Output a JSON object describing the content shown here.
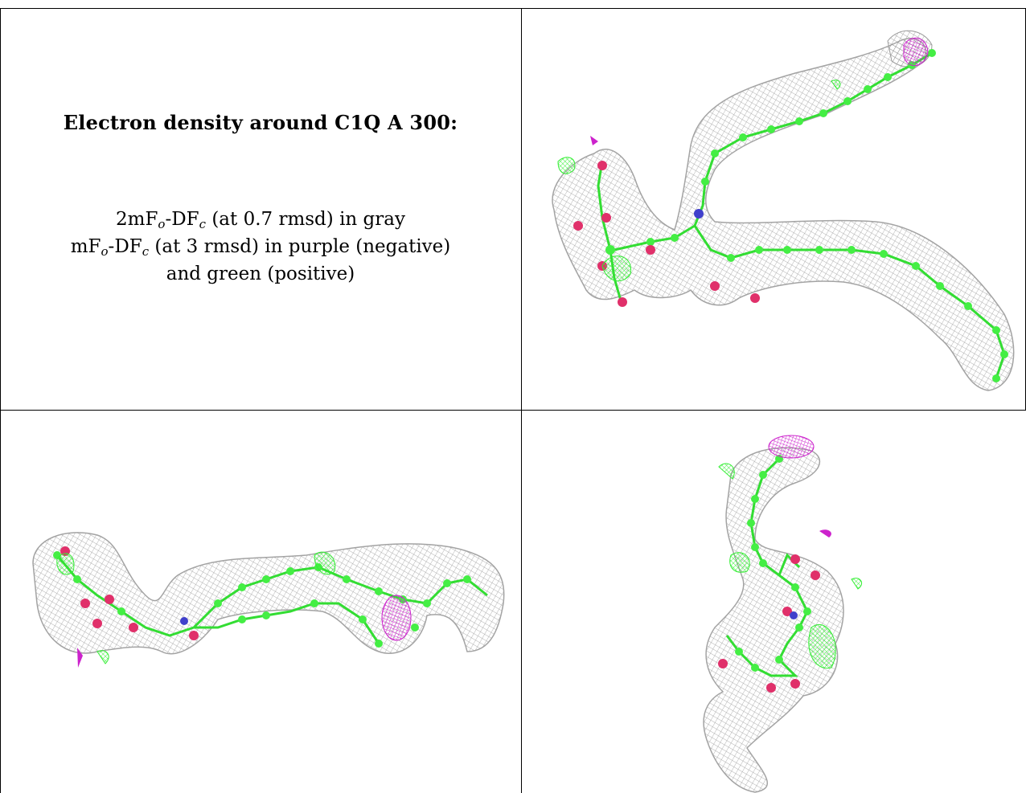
{
  "caption": {
    "title": "Electron density around C1Q A 300:",
    "line1": {
      "prefix": "2mF",
      "o": "o",
      "mid": "-DF",
      "c": "c",
      "suffix": " (at 0.7 rmsd) in gray"
    },
    "line2": {
      "prefix": "mF",
      "o": "o",
      "mid": "-DF",
      "c": "c",
      "suffix": " (at 3 rmsd) in purple (negative)"
    },
    "line3": "and green (positive)"
  },
  "colors": {
    "mesh_2fofc": "#9a9a9a",
    "mesh_negative": "#cc22cc",
    "mesh_positive": "#33ee33",
    "carbon_atom": "#44ee44",
    "oxygen_atom": "#e0306a",
    "nitrogen_atom": "#4040cc"
  },
  "views": [
    {
      "name": "view-top-right"
    },
    {
      "name": "view-bottom-left"
    },
    {
      "name": "view-bottom-right"
    }
  ]
}
